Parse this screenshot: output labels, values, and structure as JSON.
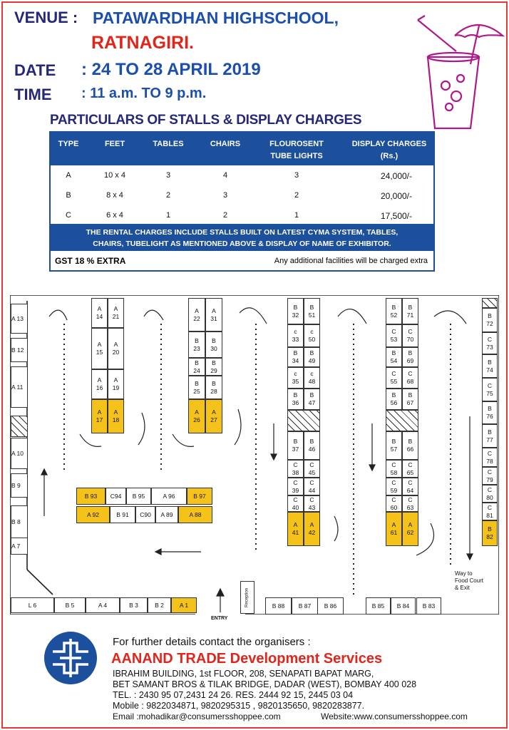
{
  "header": {
    "venue_label": "VENUE :",
    "venue_line1": "PATAWARDHAN HIGHSCHOOL,",
    "venue_line2": "RATNAGIRI.",
    "date_label": "DATE",
    "date_value": ": 24 TO 28 APRIL 2019",
    "time_label": "TIME",
    "time_value": ": 11 a.m. TO 9 p.m."
  },
  "table": {
    "title": "PARTICULARS OF STALLS & DISPLAY CHARGES",
    "columns": [
      "TYPE",
      "FEET",
      "TABLES",
      "CHAIRS",
      "FLOUROSENT\nTUBE LIGHTS",
      "DISPLAY CHARGES\n(Rs.)"
    ],
    "rows": [
      [
        "A",
        "10 x 4",
        "3",
        "4",
        "3",
        "24,000/-"
      ],
      [
        "B",
        "8 x 4",
        "2",
        "3",
        "2",
        "20,000/-"
      ],
      [
        "C",
        "6 x 4",
        "1",
        "2",
        "1",
        "17,500/-"
      ]
    ],
    "note_line1": "THE RENTAL CHARGES INCLUDE STALLS BUILT ON LATEST CYMA SYSTEM, TABLES,",
    "note_line2": "CHAIRS, TUBELIGHT AS MENTIONED ABOVE & DISPLAY OF NAME OF EXHIBITOR.",
    "gst": "GST 18 % EXTRA",
    "additional": "Any additional facilities will be charged extra"
  },
  "plan": {
    "left_wall": [
      "A 13",
      "B 12",
      "A 11",
      "A 10",
      "B 9",
      "B 8",
      "A 7"
    ],
    "bottom_row": [
      "L 6",
      "B 5",
      "A 4",
      "B 3",
      "B 2",
      "A 1"
    ],
    "block1_left": [
      "A\n14",
      "A\n15",
      "A\n16",
      "A\n17"
    ],
    "block1_right": [
      "A\n21",
      "A\n20",
      "A\n19",
      "A\n18"
    ],
    "block2_left": [
      "A\n22",
      "B\n23",
      "B\n24",
      "B\n25",
      "A\n26"
    ],
    "block2_right": [
      "A\n31",
      "B\n30",
      "B\n29",
      "B\n28",
      "A\n27"
    ],
    "block3_left": [
      "B\n32",
      "c\n33",
      "B\n34",
      "c\n35",
      "B\n36",
      "B\n37",
      "C\n38",
      "C\n39",
      "C\n40",
      "A\n41"
    ],
    "block3_right": [
      "B\n51",
      "c\n50",
      "B\n49",
      "c\n48",
      "B\n47",
      "B\n46",
      "C\n45",
      "C\n44",
      "C\n43",
      "A\n42"
    ],
    "block4_left": [
      "B\n52",
      "C\n53",
      "B\n54",
      "C\n55",
      "B\n56",
      "B\n57",
      "C\n58",
      "C\n59",
      "C\n60",
      "A\n61"
    ],
    "block4_right": [
      "B\n71",
      "C\n70",
      "B\n69",
      "C\n68",
      "B\n67",
      "B\n66",
      "C\n65",
      "C\n64",
      "C\n63",
      "A\n62"
    ],
    "right_wall": [
      "B\n72",
      "C\n73",
      "B\n74",
      "C\n75",
      "B\n76",
      "B\n77",
      "C\n78",
      "C\n79",
      "C\n80",
      "C\n81",
      "B\n82"
    ],
    "center_top": [
      "B 93",
      "C94",
      "B 95",
      "A 96",
      "B 97"
    ],
    "center_bottom": [
      "A 92",
      "B 91",
      "C90",
      "A 89",
      "A 88"
    ],
    "bottom_mid1": [
      "B 88",
      "B 87",
      "B 86"
    ],
    "bottom_mid2": [
      "B 85",
      "B 84",
      "B 83"
    ],
    "reception": "Reception",
    "entry": "ENTRY",
    "exit_line1": "Way to",
    "exit_line2": "Food Court",
    "exit_line3": "& Exit"
  },
  "footer": {
    "intro": "For further details contact the organisers :",
    "company": "AANAND TRADE Development Services",
    "address1": "IBRAHIM BUILDING, 1st FLOOR, 208, SENAPATI  BAPAT MARG,",
    "address2": "BET SAMANT BROS & TILAK BRIDGE, DADAR (WEST), BOMBAY 400 028",
    "tel": "TEL. : 2430 95 07,2431 24 26. RES. 2444 92 15, 2445 03 04",
    "mobile": "Mobile : 9822034871, 9820295315 , 9820135650, 9820283877.",
    "email": "Email :mohadikar@consumersshoppee.com",
    "website": "Website:www.consumersshoppee.com"
  },
  "colors": {
    "accent_red": "#e0261c",
    "navy": "#25287a",
    "table_blue": "#1c4f9c",
    "stall_yellow": "#f5c21a"
  }
}
